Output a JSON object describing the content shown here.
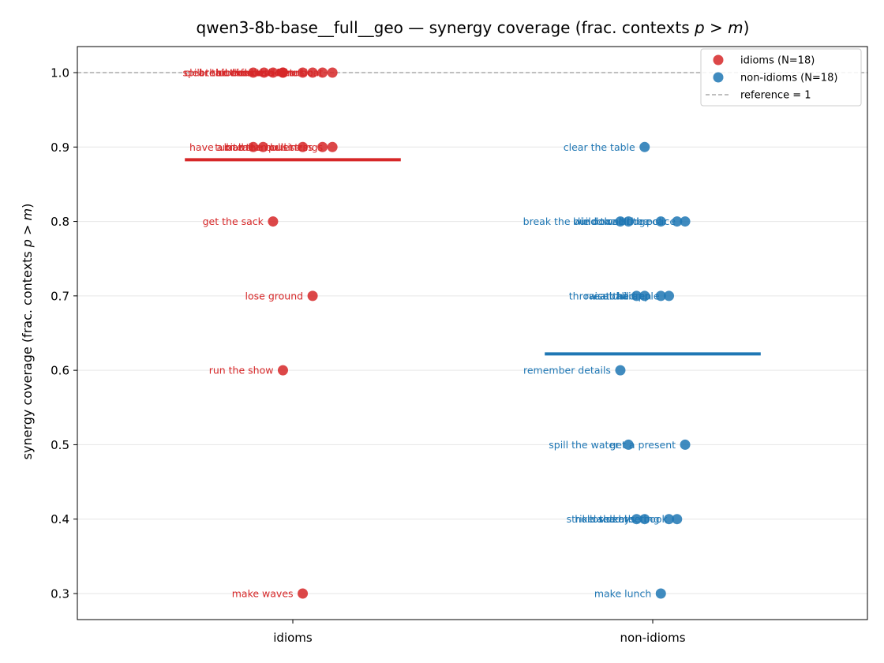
{
  "chart_data": {
    "type": "scatter",
    "title": "qwen3-8b-base__full__geo — synergy coverage  (frac. contexts p > m)",
    "title_main": "qwen3-8b-base__full__geo — synergy coverage  (frac. contexts ",
    "title_math": "p > m",
    "title_close": ")",
    "ylabel": "synergy coverage  (frac. contexts p > m)",
    "ylabel_main": "synergy coverage  (frac. contexts ",
    "ylabel_math": "p > m",
    "ylabel_close": ")",
    "categories": [
      "idioms",
      "non-idioms"
    ],
    "ylim": [
      0.265,
      1.035
    ],
    "yticks": [
      "0.3",
      "0.4",
      "0.5",
      "0.6",
      "0.7",
      "0.8",
      "0.9",
      "1.0"
    ],
    "reference": 1.0,
    "grid": "horizontal",
    "legend_position": "top-right",
    "legend": [
      "idioms (N=18)",
      "non-idioms (N=18)",
      "reference = 1"
    ],
    "series": [
      {
        "name": "idioms (N=18)",
        "color": "#d62728",
        "mean": 0.883,
        "points": [
          {
            "label": "clear the air",
            "x": -0.22,
            "y": 1.0
          },
          {
            "label": "spill the beans",
            "x": -0.16,
            "y": 1.0
          },
          {
            "label": "break the ice",
            "x": -0.11,
            "y": 1.0
          },
          {
            "label": "hit the road",
            "x": -0.055,
            "y": 1.0
          },
          {
            "label": "cut corners",
            "x": -0.055,
            "y": 1.0
          },
          {
            "label": "hold the fort",
            "x": 0.055,
            "y": 1.0
          },
          {
            "label": "lose heart",
            "x": 0.11,
            "y": 1.0
          },
          {
            "label": "face the music",
            "x": 0.165,
            "y": 1.0
          },
          {
            "label": "rock the boat",
            "x": 0.22,
            "y": 1.0
          },
          {
            "label": "have a ball",
            "x": -0.22,
            "y": 0.9
          },
          {
            "label": "turn tail",
            "x": -0.165,
            "y": 0.9
          },
          {
            "label": "bite the bullet",
            "x": 0.055,
            "y": 0.9
          },
          {
            "label": "mean business",
            "x": 0.165,
            "y": 0.9
          },
          {
            "label": "pull strings",
            "x": 0.22,
            "y": 0.9
          },
          {
            "label": "get the sack",
            "x": -0.11,
            "y": 0.8
          },
          {
            "label": "lose ground",
            "x": 0.11,
            "y": 0.7
          },
          {
            "label": "run the show",
            "x": -0.055,
            "y": 0.6
          },
          {
            "label": "make waves",
            "x": 0.055,
            "y": 0.3
          }
        ]
      },
      {
        "name": "non-idioms (N=18)",
        "color": "#1f77b4",
        "mean": 0.622,
        "points": [
          {
            "label": "clear the table",
            "x": -0.045,
            "y": 0.9
          },
          {
            "label": "break the window",
            "x": -0.18,
            "y": 0.8
          },
          {
            "label": "lie down",
            "x": -0.135,
            "y": 0.8
          },
          {
            "label": "build the bridge",
            "x": 0.045,
            "y": 0.8
          },
          {
            "label": "sell the car",
            "x": 0.135,
            "y": 0.8
          },
          {
            "label": "call the police",
            "x": 0.18,
            "y": 0.8
          },
          {
            "label": "throw a ball",
            "x": -0.09,
            "y": 0.7
          },
          {
            "label": "cut hair",
            "x": -0.045,
            "y": 0.7
          },
          {
            "label": "raise children",
            "x": 0.045,
            "y": 0.7
          },
          {
            "label": "eat the apple",
            "x": 0.09,
            "y": 0.7
          },
          {
            "label": "remember details",
            "x": -0.18,
            "y": 0.6
          },
          {
            "label": "spill the water",
            "x": -0.135,
            "y": 0.5
          },
          {
            "label": "get a present",
            "x": 0.18,
            "y": 0.5
          },
          {
            "label": "strike a deal",
            "x": -0.09,
            "y": 0.4
          },
          {
            "label": "lose keys",
            "x": -0.045,
            "y": 0.4
          },
          {
            "label": "hold the meeting",
            "x": 0.09,
            "y": 0.4
          },
          {
            "label": "read the book",
            "x": 0.135,
            "y": 0.4
          },
          {
            "label": "make lunch",
            "x": 0.045,
            "y": 0.3
          }
        ]
      }
    ]
  }
}
